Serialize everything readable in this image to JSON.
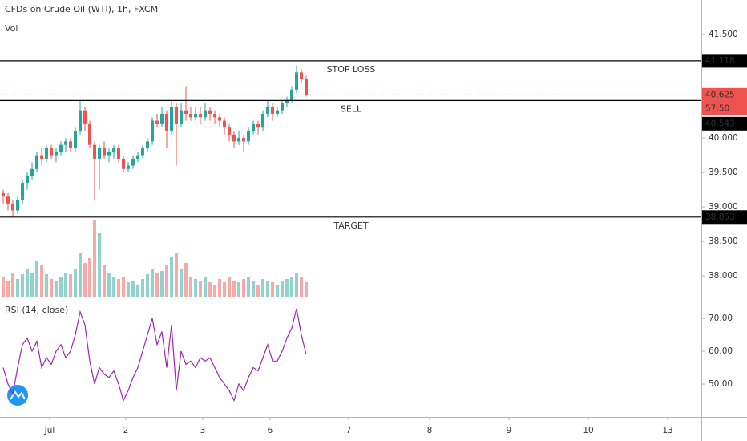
{
  "chart_data": [
    {
      "type": "candlestick",
      "title": "CFDs on Crude Oil (WTI), 1h, FXCM",
      "up_color": "#26a69a",
      "down_color": "#ef5350",
      "x": [
        1,
        2.5,
        4,
        5.5,
        7,
        8.5,
        10,
        11.5,
        13,
        14.5,
        16,
        17.5,
        19,
        20.5,
        22,
        23.5,
        25,
        26.5,
        28,
        29.5,
        31,
        32.5,
        34,
        35.5,
        37,
        38.5,
        40,
        41.5,
        43,
        44.5,
        46,
        47.5,
        49,
        50.5,
        52,
        53.5,
        55,
        56.5,
        58,
        59.5,
        61,
        62.5,
        64,
        65.5,
        67,
        68.5,
        70,
        71.5,
        73,
        74.5,
        76,
        77.5,
        79,
        80.5,
        82,
        83.5,
        85,
        86.5,
        88,
        89.5,
        91,
        92.5,
        94,
        95.5
      ],
      "candles": [
        [
          39.2,
          39.25,
          39.05,
          39.15
        ],
        [
          39.15,
          39.2,
          38.95,
          39.05
        ],
        [
          39.05,
          39.1,
          38.85,
          38.95
        ],
        [
          38.95,
          39.15,
          38.9,
          39.1
        ],
        [
          39.1,
          39.4,
          39.05,
          39.35
        ],
        [
          39.35,
          39.5,
          39.25,
          39.45
        ],
        [
          39.45,
          39.65,
          39.4,
          39.55
        ],
        [
          39.55,
          39.8,
          39.5,
          39.75
        ],
        [
          39.75,
          39.85,
          39.6,
          39.7
        ],
        [
          39.7,
          39.9,
          39.65,
          39.85
        ],
        [
          39.85,
          39.9,
          39.7,
          39.75
        ],
        [
          39.75,
          39.85,
          39.65,
          39.8
        ],
        [
          39.8,
          39.95,
          39.75,
          39.9
        ],
        [
          39.9,
          40.0,
          39.8,
          39.95
        ],
        [
          39.95,
          40.0,
          39.8,
          39.85
        ],
        [
          39.85,
          40.15,
          39.8,
          40.1
        ],
        [
          40.1,
          40.55,
          40.05,
          40.4
        ],
        [
          40.4,
          40.45,
          40.1,
          40.2
        ],
        [
          40.2,
          40.25,
          39.85,
          39.9
        ],
        [
          39.9,
          39.95,
          39.1,
          39.7
        ],
        [
          39.7,
          39.9,
          39.25,
          39.85
        ],
        [
          39.85,
          39.95,
          39.7,
          39.75
        ],
        [
          39.75,
          39.85,
          39.65,
          39.8
        ],
        [
          39.8,
          39.9,
          39.7,
          39.85
        ],
        [
          39.85,
          39.9,
          39.65,
          39.7
        ],
        [
          39.7,
          39.75,
          39.5,
          39.55
        ],
        [
          39.55,
          39.65,
          39.5,
          39.6
        ],
        [
          39.6,
          39.75,
          39.55,
          39.7
        ],
        [
          39.7,
          39.8,
          39.65,
          39.75
        ],
        [
          39.75,
          39.9,
          39.7,
          39.85
        ],
        [
          39.85,
          40.0,
          39.8,
          39.95
        ],
        [
          39.95,
          40.3,
          39.9,
          40.25
        ],
        [
          40.25,
          40.35,
          40.15,
          40.2
        ],
        [
          40.2,
          40.45,
          40.15,
          40.35
        ],
        [
          40.35,
          40.4,
          39.85,
          40.1
        ],
        [
          40.1,
          40.55,
          40.05,
          40.45
        ],
        [
          40.45,
          40.5,
          39.6,
          40.2
        ],
        [
          40.2,
          40.5,
          40.15,
          40.4
        ],
        [
          40.4,
          40.75,
          40.25,
          40.35
        ],
        [
          40.35,
          40.45,
          40.25,
          40.3
        ],
        [
          40.3,
          40.45,
          40.25,
          40.35
        ],
        [
          40.35,
          40.45,
          40.2,
          40.3
        ],
        [
          40.3,
          40.5,
          40.25,
          40.4
        ],
        [
          40.4,
          40.45,
          40.25,
          40.35
        ],
        [
          40.35,
          40.4,
          40.2,
          40.3
        ],
        [
          40.3,
          40.35,
          40.15,
          40.25
        ],
        [
          40.25,
          40.3,
          40.05,
          40.15
        ],
        [
          40.15,
          40.2,
          39.95,
          40.05
        ],
        [
          40.05,
          40.1,
          39.85,
          39.95
        ],
        [
          39.95,
          40.1,
          39.9,
          40.0
        ],
        [
          40.0,
          40.05,
          39.8,
          39.95
        ],
        [
          39.95,
          40.15,
          39.9,
          40.1
        ],
        [
          40.1,
          40.25,
          40.05,
          40.2
        ],
        [
          40.2,
          40.25,
          40.05,
          40.15
        ],
        [
          40.15,
          40.4,
          40.1,
          40.35
        ],
        [
          40.35,
          40.55,
          40.3,
          40.45
        ],
        [
          40.45,
          40.5,
          40.25,
          40.35
        ],
        [
          40.35,
          40.45,
          40.3,
          40.4
        ],
        [
          40.4,
          40.55,
          40.35,
          40.5
        ],
        [
          40.5,
          40.6,
          40.45,
          40.55
        ],
        [
          40.55,
          40.75,
          40.5,
          40.7
        ],
        [
          40.7,
          41.05,
          40.65,
          40.95
        ],
        [
          40.95,
          41.0,
          40.8,
          40.85
        ],
        [
          40.85,
          40.9,
          40.6,
          40.625
        ]
      ],
      "xlim": [
        0,
        218.75
      ],
      "xticks": [
        {
          "value": 15.5,
          "label": "Jul"
        },
        {
          "value": 39.25,
          "label": "2"
        },
        {
          "value": 63.25,
          "label": "3"
        },
        {
          "value": 84.25,
          "label": "6"
        },
        {
          "value": 108.75,
          "label": "7"
        },
        {
          "value": 134,
          "label": "8"
        },
        {
          "value": 158.75,
          "label": "9"
        },
        {
          "value": 183.5,
          "label": "10"
        },
        {
          "value": 208.25,
          "label": "13"
        }
      ],
      "ylim": [
        37.7,
        42.0
      ],
      "yticks": [
        {
          "value": 41.5,
          "label": "41.500"
        },
        {
          "value": 40.0,
          "label": "40.000"
        },
        {
          "value": 39.5,
          "label": "39.500"
        },
        {
          "value": 39.0,
          "label": "39.000"
        },
        {
          "value": 38.5,
          "label": "38.500"
        },
        {
          "value": 38.0,
          "label": "38.000"
        }
      ],
      "levels": [
        {
          "name": "STOP LOSS",
          "value": 41.118,
          "color": "#e53935"
        },
        {
          "name": "SELL",
          "value": 40.543,
          "color": "#1565c0"
        },
        {
          "name": "TARGET",
          "value": 38.853,
          "color": "#1b5e20"
        }
      ],
      "last_price": {
        "value": 40.625,
        "countdown": "57:50",
        "color": "#ef5350"
      }
    },
    {
      "type": "volume",
      "title": "Vol",
      "values": [
        25,
        20,
        30,
        22,
        28,
        35,
        30,
        45,
        40,
        28,
        22,
        20,
        25,
        30,
        28,
        35,
        55,
        42,
        48,
        95,
        80,
        40,
        30,
        25,
        22,
        25,
        18,
        20,
        15,
        22,
        28,
        35,
        30,
        32,
        40,
        50,
        55,
        35,
        42,
        25,
        22,
        20,
        25,
        18,
        15,
        22,
        18,
        25,
        20,
        18,
        22,
        25,
        20,
        15,
        22,
        20,
        18,
        15,
        20,
        22,
        25,
        30,
        25,
        18
      ]
    },
    {
      "type": "line",
      "title": "RSI (14, close)",
      "color": "#9c27b0",
      "values": [
        55,
        50,
        47,
        55,
        62,
        64,
        60,
        63,
        55,
        58,
        56,
        60,
        62,
        58,
        60,
        65,
        72,
        68,
        57,
        50,
        55,
        53,
        52,
        54,
        50,
        45,
        48,
        52,
        55,
        60,
        65,
        70,
        62,
        66,
        55,
        68,
        48,
        60,
        56,
        57,
        55,
        58,
        57,
        58,
        55,
        52,
        50,
        48,
        45,
        50,
        48,
        52,
        55,
        54,
        58,
        62,
        57,
        57,
        60,
        64,
        67,
        73,
        65,
        59
      ],
      "ylim": [
        40,
        76.6
      ],
      "yticks": [
        {
          "value": 70,
          "label": "70.00"
        },
        {
          "value": 60,
          "label": "60.00"
        },
        {
          "value": 50,
          "label": "50.00"
        }
      ]
    }
  ]
}
